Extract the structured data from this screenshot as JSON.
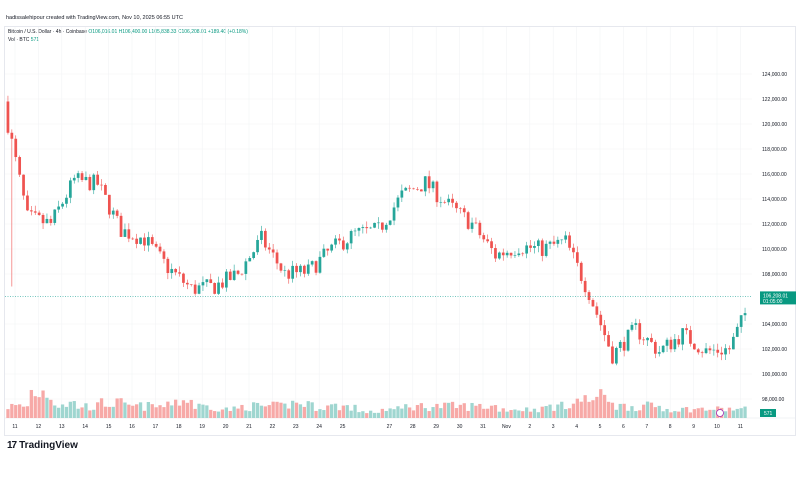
{
  "credit": "hadissalehipour created with TradingView.com, Nov 10, 2025 06:55 UTC",
  "legend": {
    "symbol": "Bitcoin / U.S. Dollar · 4h · Coinbase",
    "open": "O106,016.01",
    "high": "H106,400.00",
    "low": "L105,838.33",
    "close": "C106,208.01",
    "change": "+189.40 (+0.18%)",
    "vol_label": "Vol · BTC",
    "vol_value": "571"
  },
  "price_label": {
    "price": "106,208.01",
    "countdown": "01:05:00"
  },
  "volume_label": "571",
  "brand": "TradingView",
  "colors": {
    "up": "#26a69a",
    "down": "#ef5350",
    "up_vol": "#9fd6d0",
    "down_vol": "#f7a9a7",
    "accent": "#089981"
  },
  "chart_data": {
    "type": "candlestick",
    "interval": "4h",
    "y_ticks": [
      "124,000.00",
      "122,000.00",
      "120,000.00",
      "118,000.00",
      "116,000.00",
      "114,000.00",
      "112,000.00",
      "110,000.00",
      "108,000.00",
      "104,000.00",
      "102,000.00",
      "100,000.00",
      "98,000.00"
    ],
    "y_tick_values": [
      124000,
      122000,
      120000,
      118000,
      116000,
      114000,
      112000,
      110000,
      108000,
      104000,
      102000,
      100000,
      98000
    ],
    "x_ticks": [
      "11",
      "12",
      "13",
      "14",
      "15",
      "16",
      "17",
      "18",
      "19",
      "20",
      "21",
      "22",
      "23",
      "24",
      "25",
      "27",
      "28",
      "29",
      "30",
      "31",
      "Nov",
      "2",
      "3",
      "4",
      "5",
      "6",
      "7",
      "8",
      "9",
      "10",
      "11"
    ],
    "x_tick_days": [
      0,
      1,
      2,
      3,
      4,
      5,
      6,
      7,
      8,
      9,
      10,
      11,
      12,
      13,
      14,
      16,
      17,
      18,
      19,
      20,
      21,
      22,
      23,
      24,
      25,
      26,
      27,
      28,
      29,
      30,
      31
    ],
    "daily_closes": [
      121500,
      112500,
      112000,
      115500,
      115200,
      111500,
      110800,
      108500,
      106800,
      107000,
      108000,
      110800,
      108000,
      108200,
      110000,
      111200,
      111500,
      114300,
      115300,
      113500,
      112000,
      109500,
      110200,
      110000,
      110600,
      106500,
      101500,
      103600,
      101800,
      103200,
      101800,
      102000,
      106208
    ],
    "daily_volume_level": [
      3,
      8,
      4,
      3,
      4,
      3,
      3,
      5,
      3,
      2,
      3,
      3,
      4,
      3,
      3,
      1,
      2,
      3,
      3,
      3,
      3,
      2,
      2,
      3,
      5,
      6,
      3,
      3,
      2,
      2,
      2,
      2,
      1
    ],
    "current_price": 106208.01
  }
}
